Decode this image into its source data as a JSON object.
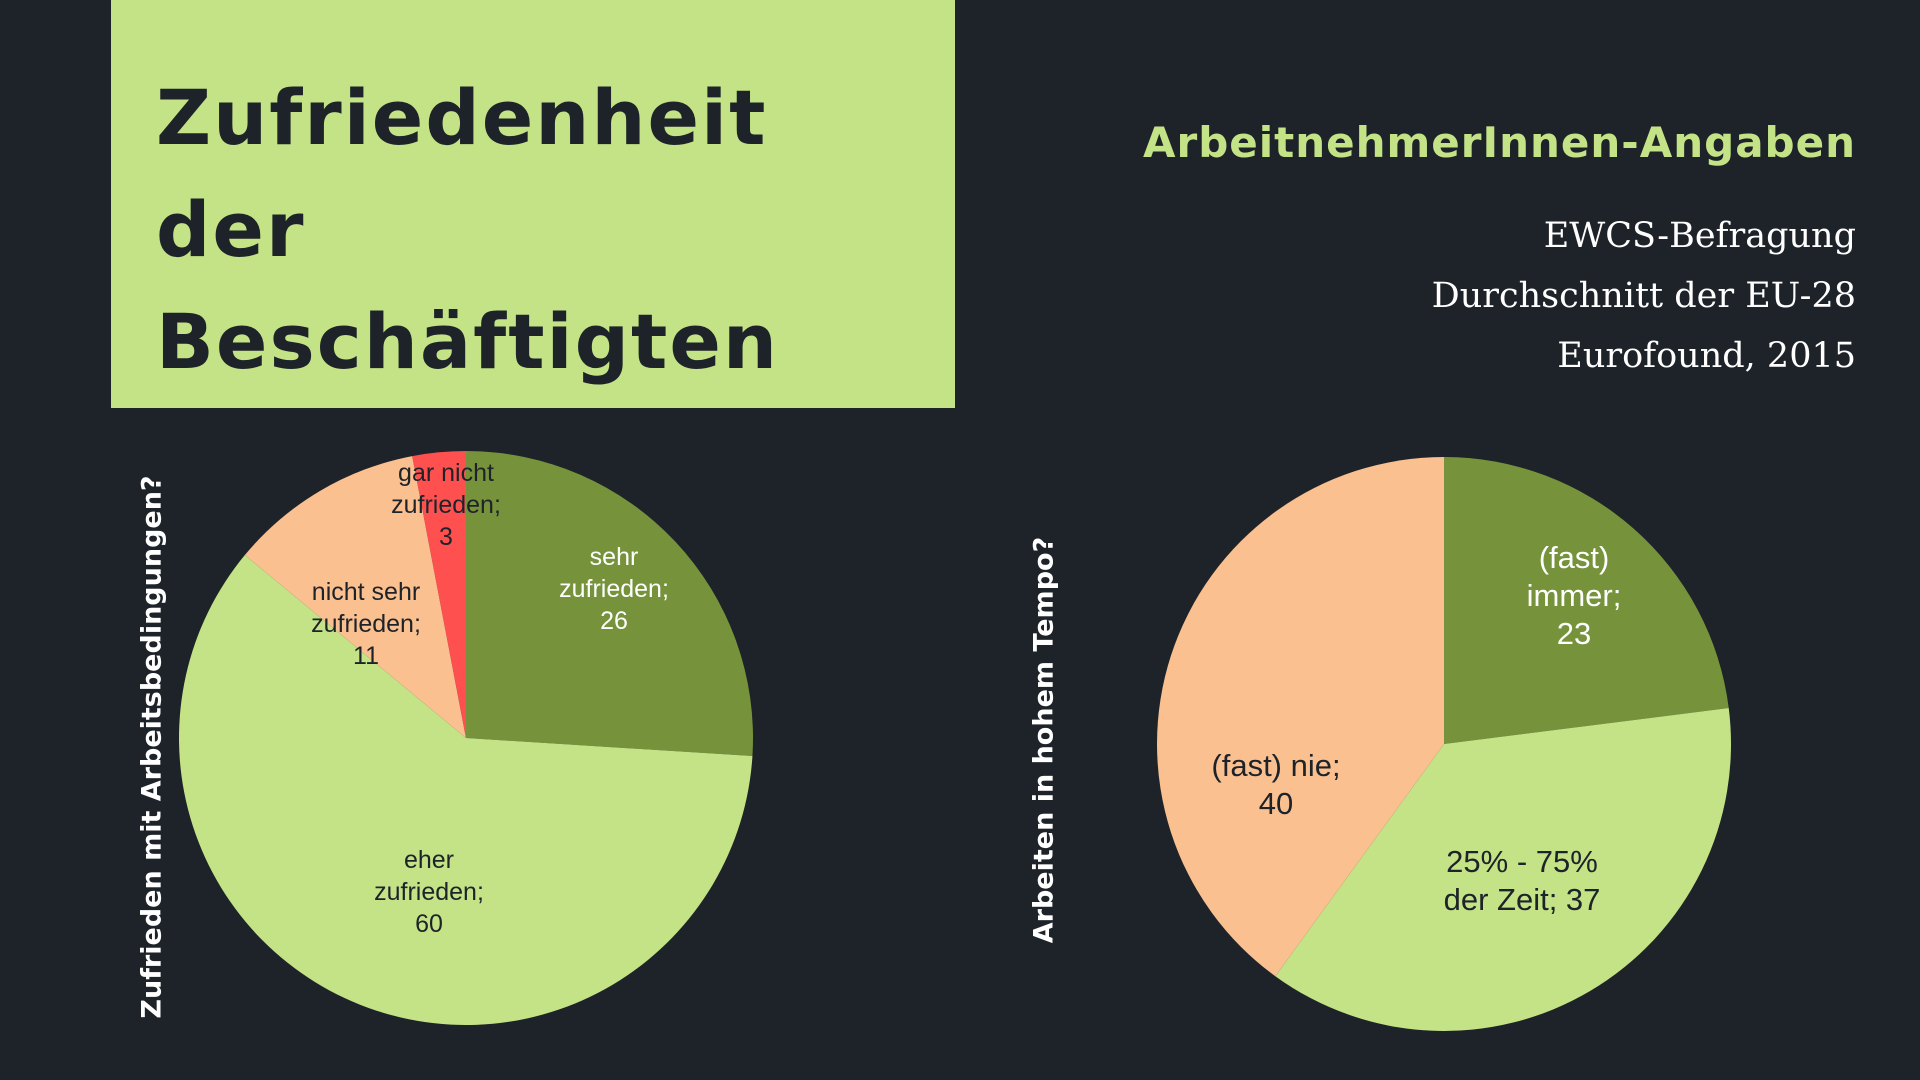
{
  "header": {
    "title_line1": "Zufriedenheit der",
    "title_line2": "Beschäftigten",
    "subtitle": "ArbeitnehmerInnen-Angaben",
    "source_line1": "EWCS-Befragung",
    "source_line2": "Durchschnitt der EU-28",
    "source_line3": "Eurofound, 2015"
  },
  "colors": {
    "background": "#1e2329",
    "title_box": "#c3e386",
    "subtitle_text": "#c3e386",
    "dark_green": "#76933c",
    "light_green": "#c3e386",
    "peach": "#fac090",
    "red": "#ff5050"
  },
  "chart_data": [
    {
      "type": "pie",
      "ylabel": "Zufrieden mit Arbeitsbedingungen?",
      "slices": [
        {
          "label": "sehr zufrieden",
          "value": 26,
          "color": "#76933c",
          "text_lines": [
            "sehr",
            "zufrieden;",
            "26"
          ]
        },
        {
          "label": "eher zufrieden",
          "value": 60,
          "color": "#c3e386",
          "text_lines": [
            "eher",
            "zufrieden;",
            "60"
          ]
        },
        {
          "label": "nicht sehr zufrieden",
          "value": 11,
          "color": "#fac090",
          "text_lines": [
            "nicht sehr",
            "zufrieden;",
            "11"
          ]
        },
        {
          "label": "gar nicht zufrieden",
          "value": 3,
          "color": "#ff5050",
          "text_lines": [
            "gar nicht",
            "zufrieden;",
            "3"
          ]
        }
      ]
    },
    {
      "type": "pie",
      "ylabel": "Arbeiten in hohem Tempo?",
      "slices": [
        {
          "label": "(fast) immer",
          "value": 23,
          "color": "#76933c",
          "text_lines": [
            "(fast)",
            "immer;",
            "23"
          ]
        },
        {
          "label": "25% - 75% der Zeit",
          "value": 37,
          "color": "#c3e386",
          "text_lines": [
            "25% - 75%",
            "der Zeit; 37"
          ]
        },
        {
          "label": "(fast) nie",
          "value": 40,
          "color": "#fac090",
          "text_lines": [
            "(fast) nie;",
            "40"
          ]
        }
      ]
    }
  ]
}
